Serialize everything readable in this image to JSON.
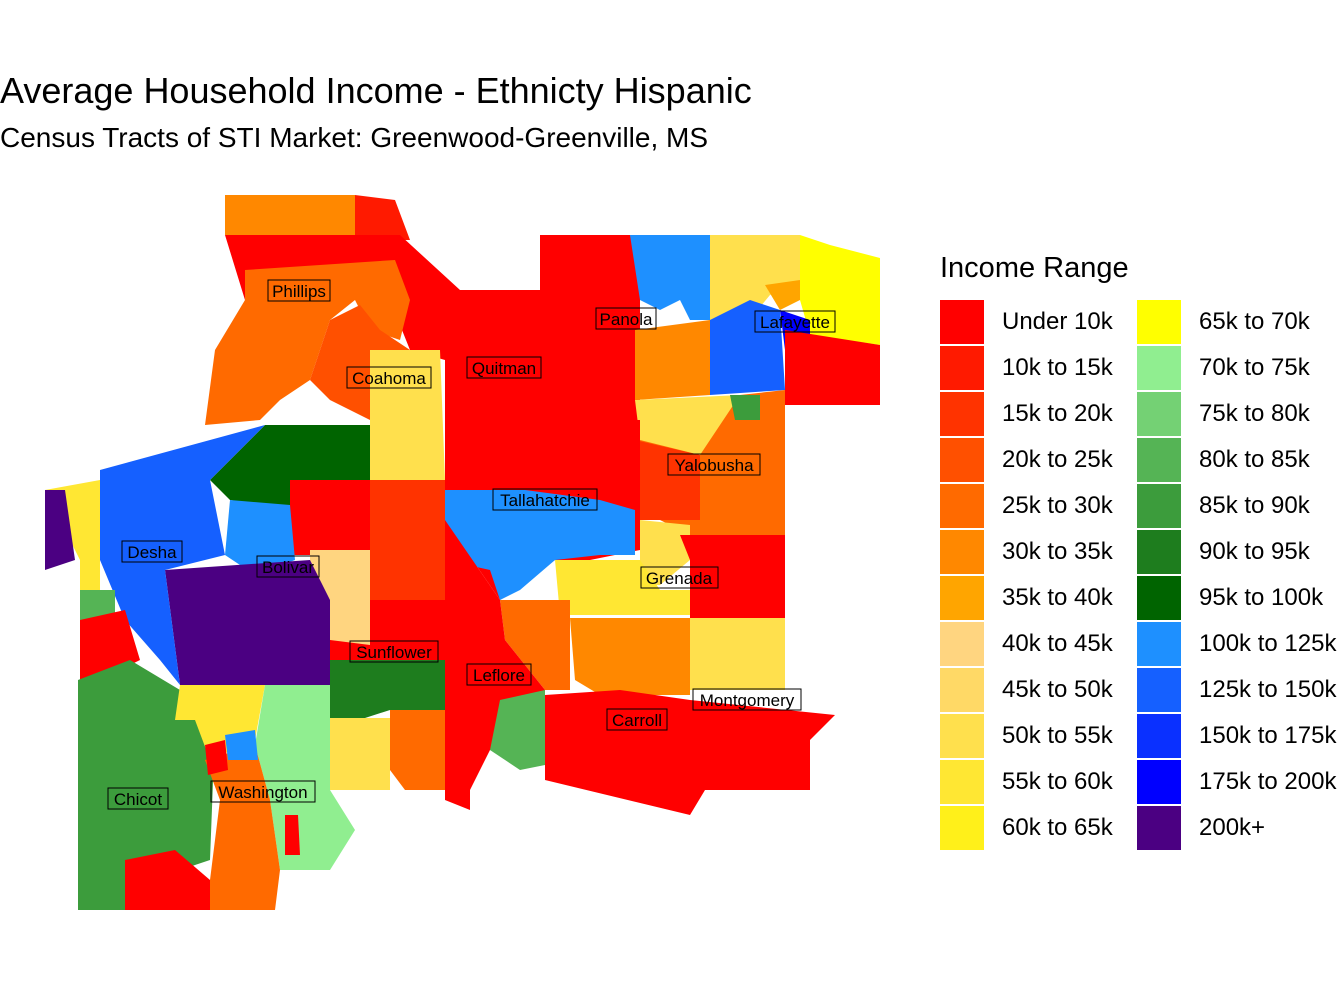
{
  "title": "Average Household Income - Ethnicty Hispanic",
  "subtitle": "Census Tracts of STI Market: Greenwood-Greenville, MS",
  "legend": {
    "title": "Income Range",
    "items": [
      {
        "label": "Under 10k",
        "color": "#FF0000"
      },
      {
        "label": "10k to 15k",
        "color": "#FF1A00"
      },
      {
        "label": "15k to 20k",
        "color": "#FF3300"
      },
      {
        "label": "20k to 25k",
        "color": "#FF5000"
      },
      {
        "label": "25k to 30k",
        "color": "#FF6A00"
      },
      {
        "label": "30k to 35k",
        "color": "#FF8800"
      },
      {
        "label": "35k to 40k",
        "color": "#FFA500"
      },
      {
        "label": "40k to 45k",
        "color": "#FFD580"
      },
      {
        "label": "45k to 50k",
        "color": "#FFD966"
      },
      {
        "label": "50k to 55k",
        "color": "#FFE04D"
      },
      {
        "label": "55k to 60k",
        "color": "#FFE733"
      },
      {
        "label": "60k to 65k",
        "color": "#FFF01A"
      },
      {
        "label": "65k to 70k",
        "color": "#FFFF00"
      },
      {
        "label": "70k to 75k",
        "color": "#90EE90"
      },
      {
        "label": "75k to 80k",
        "color": "#74D174"
      },
      {
        "label": "80k to 85k",
        "color": "#55B455"
      },
      {
        "label": "85k to 90k",
        "color": "#3C9C3C"
      },
      {
        "label": "90k to 95k",
        "color": "#1E7D1E"
      },
      {
        "label": "95k to 100k",
        "color": "#006400"
      },
      {
        "label": "100k to 125k",
        "color": "#1E90FF"
      },
      {
        "label": "125k to 150k",
        "color": "#1560FF"
      },
      {
        "label": "150k to 175k",
        "color": "#0A30FF"
      },
      {
        "label": "175k to 200k",
        "color": "#0000FF"
      },
      {
        "label": "200k+",
        "color": "#4B0082"
      }
    ]
  },
  "counties": [
    {
      "name": "Phillips"
    },
    {
      "name": "Panola"
    },
    {
      "name": "Lafayette"
    },
    {
      "name": "Coahoma"
    },
    {
      "name": "Quitman"
    },
    {
      "name": "Yalobusha"
    },
    {
      "name": "Tallahatchie"
    },
    {
      "name": "Desha"
    },
    {
      "name": "Bolivar"
    },
    {
      "name": "Grenada"
    },
    {
      "name": "Sunflower"
    },
    {
      "name": "Leflore"
    },
    {
      "name": "Montgomery"
    },
    {
      "name": "Carroll"
    },
    {
      "name": "Chicot"
    },
    {
      "name": "Washington"
    }
  ]
}
